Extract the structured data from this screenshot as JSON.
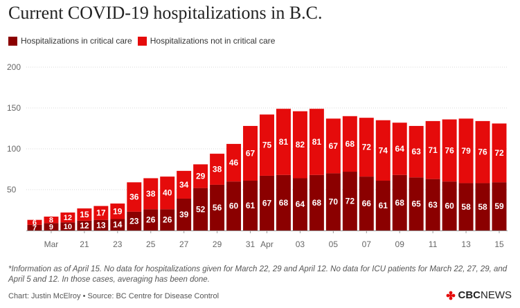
{
  "title": "Current COVID-19 hospitalizations in B.C.",
  "legend": [
    {
      "label": "Hospitalizations in critical care",
      "color": "#8b0000"
    },
    {
      "label": "Hospitalizations not in critical care",
      "color": "#e50b0b"
    }
  ],
  "footnote": "*Information as of April 15. No data for hospitalizations given for March 22, 29 and April 12. No data for ICU patients for March 22, 27, 29, and April 5 and 12. In those cases, averaging has been done.",
  "credit": "Chart: Justin McElroy • Source: BC Centre for Disease Control",
  "brand": {
    "prefix": "CBC",
    "suffix": "NEWS",
    "logo_icon": "cbc-gem-icon"
  },
  "chart_data": {
    "type": "bar",
    "stacked": true,
    "title": "Current COVID-19 hospitalizations in B.C.",
    "ylim": [
      0,
      200
    ],
    "yticks": [
      50,
      100,
      150,
      200
    ],
    "grid": true,
    "legend_position": "top-left",
    "x_tick_labels": [
      "Mar",
      "21",
      "23",
      "25",
      "27",
      "29",
      "31",
      "Apr",
      "03",
      "05",
      "07",
      "09",
      "11",
      "13",
      "15"
    ],
    "categories": [
      "Mar 18",
      "Mar 19",
      "Mar 20",
      "Mar 21",
      "Mar 22",
      "Mar 23",
      "Mar 24",
      "Mar 25",
      "Mar 26",
      "Mar 27",
      "Mar 28",
      "Mar 29",
      "Mar 30",
      "Mar 31",
      "Apr 1",
      "Apr 2",
      "Apr 3",
      "Apr 4",
      "Apr 5",
      "Apr 6",
      "Apr 7",
      "Apr 8",
      "Apr 9",
      "Apr 10",
      "Apr 11",
      "Apr 12",
      "Apr 13",
      "Apr 14",
      "Apr 15"
    ],
    "series": [
      {
        "name": "Hospitalizations in critical care",
        "color": "#8b0000",
        "values": [
          7,
          9,
          10,
          12,
          13,
          14,
          23,
          26,
          26,
          39,
          52,
          56,
          60,
          61,
          67,
          68,
          64,
          68,
          70,
          72,
          66,
          61,
          68,
          65,
          63,
          60,
          58,
          58,
          59
        ]
      },
      {
        "name": "Hospitalizations not in critical care",
        "color": "#e50b0b",
        "values": [
          6,
          8,
          12,
          15,
          17,
          19,
          36,
          38,
          40,
          34,
          29,
          38,
          46,
          67,
          75,
          81,
          82,
          81,
          67,
          68,
          72,
          74,
          64,
          63,
          71,
          76,
          79,
          76,
          72
        ]
      }
    ]
  }
}
